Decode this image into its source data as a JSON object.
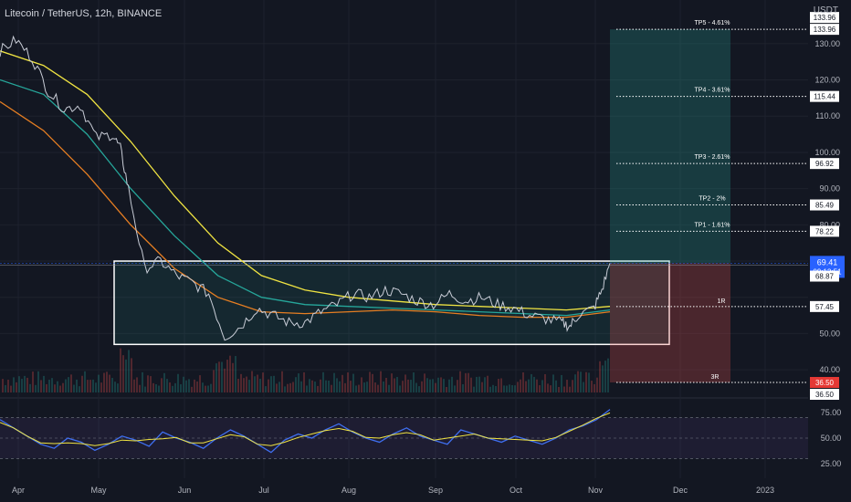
{
  "header": {
    "symbol": "Litecoin / TetherUS, 12h, BINANCE"
  },
  "axis": {
    "currency": "USDT"
  },
  "chart_data": {
    "type": "line",
    "symbol": "Litecoin / TetherUS",
    "interval": "12h",
    "exchange": "BINANCE",
    "price_axis": {
      "min": 25,
      "max": 135,
      "ticks": [
        "130.00",
        "120.00",
        "110.00",
        "100.00",
        "90.00",
        "80.00",
        "50.00",
        "40.00"
      ]
    },
    "time_axis": {
      "labels": [
        "Apr",
        "May",
        "Jun",
        "Jul",
        "Aug",
        "Sep",
        "Oct",
        "Nov",
        "Dec",
        "2023"
      ]
    },
    "price_series": [
      {
        "t": 0,
        "v": 128
      },
      {
        "t": 0.02,
        "v": 131
      },
      {
        "t": 0.04,
        "v": 126
      },
      {
        "t": 0.06,
        "v": 117
      },
      {
        "t": 0.08,
        "v": 112
      },
      {
        "t": 0.1,
        "v": 113
      },
      {
        "t": 0.12,
        "v": 104
      },
      {
        "t": 0.14,
        "v": 105
      },
      {
        "t": 0.15,
        "v": 101
      },
      {
        "t": 0.16,
        "v": 90
      },
      {
        "t": 0.18,
        "v": 68
      },
      {
        "t": 0.2,
        "v": 70
      },
      {
        "t": 0.22,
        "v": 66
      },
      {
        "t": 0.24,
        "v": 64
      },
      {
        "t": 0.26,
        "v": 61
      },
      {
        "t": 0.28,
        "v": 49
      },
      {
        "t": 0.3,
        "v": 52
      },
      {
        "t": 0.32,
        "v": 57
      },
      {
        "t": 0.34,
        "v": 55
      },
      {
        "t": 0.36,
        "v": 53
      },
      {
        "t": 0.38,
        "v": 53
      },
      {
        "t": 0.4,
        "v": 56
      },
      {
        "t": 0.42,
        "v": 58
      },
      {
        "t": 0.44,
        "v": 61
      },
      {
        "t": 0.46,
        "v": 60
      },
      {
        "t": 0.48,
        "v": 62
      },
      {
        "t": 0.5,
        "v": 61
      },
      {
        "t": 0.52,
        "v": 59
      },
      {
        "t": 0.54,
        "v": 58
      },
      {
        "t": 0.56,
        "v": 61
      },
      {
        "t": 0.58,
        "v": 59
      },
      {
        "t": 0.6,
        "v": 60
      },
      {
        "t": 0.62,
        "v": 58
      },
      {
        "t": 0.64,
        "v": 57
      },
      {
        "t": 0.66,
        "v": 55
      },
      {
        "t": 0.68,
        "v": 54
      },
      {
        "t": 0.7,
        "v": 53
      },
      {
        "t": 0.71,
        "v": 52
      },
      {
        "t": 0.72,
        "v": 55
      },
      {
        "t": 0.74,
        "v": 57
      },
      {
        "t": 0.75,
        "v": 62
      },
      {
        "t": 0.76,
        "v": 69.41
      }
    ],
    "moving_averages": [
      {
        "color": "#f0e442",
        "points": [
          128,
          124,
          116,
          103,
          88,
          75,
          66,
          62,
          60,
          59,
          58,
          57.5,
          57,
          56.5,
          57.5
        ]
      },
      {
        "color": "#26a69a",
        "points": [
          120,
          116,
          105,
          90,
          77,
          66,
          60,
          58,
          57.5,
          57,
          56.5,
          56,
          55.5,
          55,
          56.5
        ]
      },
      {
        "color": "#e67e22",
        "points": [
          114,
          106,
          94,
          80,
          68,
          60,
          56,
          55.5,
          56,
          56.5,
          56,
          55,
          54.5,
          54.5,
          56
        ]
      }
    ],
    "last_price": "69.41",
    "countdown": "09:13:51",
    "level_68": "68.87",
    "ceiling_label": "133.96",
    "floor_label": "36.50",
    "range_box": {
      "top": 70,
      "bottom": 47
    },
    "entry": {
      "price": 57.45,
      "label": "1R",
      "price_label": "57.45"
    },
    "stop": {
      "price": 36.5,
      "label": "3R",
      "price_label": "36.50"
    },
    "targets": [
      {
        "name": "TP5 - 4.61%",
        "price": 133.96,
        "price_label": "133.96"
      },
      {
        "name": "TP4 - 3.61%",
        "price": 115.44,
        "price_label": "115.44"
      },
      {
        "name": "TP3 - 2.61%",
        "price": 96.92,
        "price_label": "96.92"
      },
      {
        "name": "TP2 - 2%",
        "price": 85.49,
        "price_label": "85.49"
      },
      {
        "name": "TP1 - 1.61%",
        "price": 78.22,
        "price_label": "78.22"
      }
    ],
    "rsi": {
      "min": 25,
      "max": 75,
      "ticks": [
        "75.00",
        "50.00",
        "25.00"
      ],
      "upper_band": 70,
      "lower_band": 30,
      "values": [
        68,
        60,
        52,
        44,
        40,
        50,
        46,
        38,
        44,
        52,
        48,
        42,
        56,
        50,
        46,
        40,
        50,
        58,
        52,
        44,
        36,
        48,
        54,
        50,
        58,
        64,
        56,
        50,
        46,
        54,
        60,
        52,
        48,
        44,
        58,
        54,
        50,
        46,
        52,
        48,
        44,
        50,
        58,
        62,
        68,
        78
      ]
    }
  }
}
